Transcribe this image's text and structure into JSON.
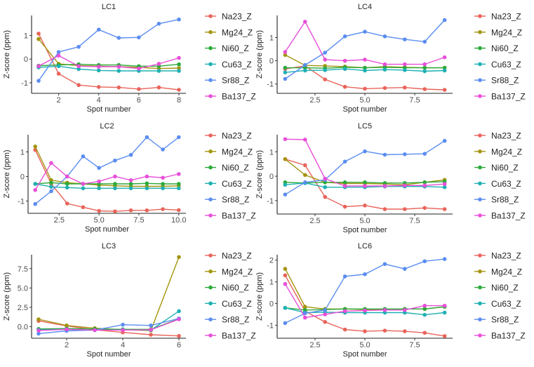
{
  "series_colors": {
    "Na23_Z": "#E8645A",
    "Mg24_Z": "#A3950E",
    "Ni60_Z": "#2BAA3A",
    "Cu63_Z": "#1EB0B3",
    "Sr88_Z": "#5B8DF0",
    "Ba137_Z": "#E84FD8"
  },
  "chart_data": [
    {
      "type": "line",
      "title": "LC1",
      "xlabel": "Spot number",
      "ylabel": "Z-score (ppm)",
      "xlim": [
        0.65,
        8.35
      ],
      "ylim": [
        -1.45,
        1.85
      ],
      "xticks": [
        2,
        4,
        6,
        8
      ],
      "xtick_labels": [
        "2",
        "4",
        "6",
        "8"
      ],
      "yticks": [
        -1,
        0,
        1
      ],
      "ytick_labels": [
        "-1",
        "0",
        "1"
      ],
      "x": [
        1,
        2,
        3,
        4,
        5,
        6,
        7,
        8
      ],
      "series": [
        {
          "name": "Na23_Z",
          "values": [
            1.08,
            -0.62,
            -1.1,
            -1.18,
            -1.2,
            -1.27,
            -1.2,
            -1.3
          ]
        },
        {
          "name": "Mg24_Z",
          "values": [
            0.85,
            -0.2,
            -0.28,
            -0.3,
            -0.32,
            -0.35,
            -0.4,
            -0.38
          ]
        },
        {
          "name": "Ni60_Z",
          "values": [
            -0.28,
            -0.25,
            -0.22,
            -0.25,
            -0.25,
            -0.3,
            -0.3,
            -0.22
          ]
        },
        {
          "name": "Cu63_Z",
          "values": [
            -0.35,
            -0.3,
            -0.42,
            -0.48,
            -0.5,
            -0.5,
            -0.5,
            -0.5
          ]
        },
        {
          "name": "Sr88_Z",
          "values": [
            -0.92,
            0.3,
            0.52,
            1.25,
            0.9,
            0.92,
            1.5,
            1.68
          ]
        },
        {
          "name": "Ba137_Z",
          "values": [
            -0.3,
            0.15,
            -0.3,
            -0.32,
            -0.32,
            -0.4,
            -0.2,
            0.05
          ]
        }
      ]
    },
    {
      "type": "line",
      "title": "LC4",
      "xlabel": "Spot number",
      "ylabel": "Z-score (ppm)",
      "xlim": [
        0.6,
        9.4
      ],
      "ylim": [
        -1.4,
        1.95
      ],
      "xticks": [
        2.5,
        5,
        7.5
      ],
      "xtick_labels": [
        "2.5",
        "5.0",
        "7.5"
      ],
      "yticks": [
        -1,
        0,
        1
      ],
      "ytick_labels": [
        "-1",
        "0",
        "1"
      ],
      "x": [
        1,
        2,
        3,
        4,
        5,
        6,
        7,
        8,
        9
      ],
      "series": [
        {
          "name": "Na23_Z",
          "values": [
            -0.35,
            -0.22,
            -0.8,
            -1.12,
            -1.2,
            -1.17,
            -1.15,
            -1.22,
            -1.25
          ]
        },
        {
          "name": "Mg24_Z",
          "values": [
            0.25,
            -0.2,
            -0.22,
            -0.25,
            -0.3,
            -0.25,
            -0.28,
            -0.3,
            -0.3
          ]
        },
        {
          "name": "Ni60_Z",
          "values": [
            -0.3,
            -0.3,
            -0.32,
            -0.28,
            -0.3,
            -0.28,
            -0.3,
            -0.3,
            -0.3
          ]
        },
        {
          "name": "Cu63_Z",
          "values": [
            -0.5,
            -0.42,
            -0.4,
            -0.35,
            -0.42,
            -0.38,
            -0.4,
            -0.45,
            -0.42
          ]
        },
        {
          "name": "Sr88_Z",
          "values": [
            -0.78,
            -0.18,
            0.35,
            1.05,
            1.25,
            1.05,
            0.92,
            0.82,
            1.75
          ]
        },
        {
          "name": "Ba137_Z",
          "values": [
            0.38,
            1.68,
            0.05,
            0.0,
            0.05,
            -0.15,
            -0.15,
            -0.15,
            0.15
          ]
        }
      ]
    },
    {
      "type": "line",
      "title": "LC2",
      "xlabel": "Spot number",
      "ylabel": "Z-score (ppm)",
      "xlim": [
        0.55,
        10.45
      ],
      "ylim": [
        -1.5,
        1.7
      ],
      "xticks": [
        2.5,
        5,
        7.5,
        10
      ],
      "xtick_labels": [
        "2.5",
        "5.0",
        "7.5",
        "10.0"
      ],
      "yticks": [
        -1,
        0,
        1
      ],
      "ytick_labels": [
        "-1",
        "0",
        "1"
      ],
      "x": [
        1,
        2,
        3,
        4,
        5,
        6,
        7,
        8,
        9,
        10
      ],
      "series": [
        {
          "name": "Na23_Z",
          "values": [
            1.08,
            -0.3,
            -1.1,
            -1.25,
            -1.4,
            -1.42,
            -1.38,
            -1.38,
            -1.33,
            -1.37
          ]
        },
        {
          "name": "Mg24_Z",
          "values": [
            1.22,
            -0.15,
            -0.25,
            -0.3,
            -0.35,
            -0.38,
            -0.4,
            -0.4,
            -0.4,
            -0.38
          ]
        },
        {
          "name": "Ni60_Z",
          "values": [
            -0.3,
            -0.25,
            -0.3,
            -0.3,
            -0.3,
            -0.3,
            -0.3,
            -0.28,
            -0.3,
            -0.3
          ]
        },
        {
          "name": "Cu63_Z",
          "values": [
            -0.3,
            -0.42,
            -0.45,
            -0.48,
            -0.48,
            -0.48,
            -0.48,
            -0.48,
            -0.48,
            -0.48
          ]
        },
        {
          "name": "Sr88_Z",
          "values": [
            -1.12,
            -0.6,
            0.0,
            0.82,
            0.35,
            0.65,
            0.88,
            1.6,
            1.1,
            1.6
          ]
        },
        {
          "name": "Ba137_Z",
          "values": [
            -0.55,
            0.55,
            0.0,
            -0.3,
            -0.2,
            0.0,
            -0.15,
            0.0,
            -0.05,
            0.1
          ]
        }
      ]
    },
    {
      "type": "line",
      "title": "LC5",
      "xlabel": "Spot number",
      "ylabel": "Z-score (ppm)",
      "xlim": [
        0.6,
        9.4
      ],
      "ylim": [
        -1.55,
        1.7
      ],
      "xticks": [
        2.5,
        5,
        7.5
      ],
      "xtick_labels": [
        "2.5",
        "5.0",
        "7.5"
      ],
      "yticks": [
        -1,
        0,
        1
      ],
      "ytick_labels": [
        "-1",
        "0",
        "1"
      ],
      "x": [
        1,
        2,
        3,
        4,
        5,
        6,
        7,
        8,
        9
      ],
      "series": [
        {
          "name": "Na23_Z",
          "values": [
            0.7,
            0.45,
            -0.85,
            -1.25,
            -1.2,
            -1.35,
            -1.35,
            -1.3,
            -1.35
          ]
        },
        {
          "name": "Mg24_Z",
          "values": [
            0.7,
            0.05,
            -0.25,
            -0.3,
            -0.3,
            -0.32,
            -0.35,
            -0.25,
            -0.15
          ]
        },
        {
          "name": "Ni60_Z",
          "values": [
            -0.25,
            -0.28,
            -0.25,
            -0.25,
            -0.25,
            -0.28,
            -0.28,
            -0.25,
            -0.22
          ]
        },
        {
          "name": "Cu63_Z",
          "values": [
            -0.35,
            -0.28,
            -0.45,
            -0.45,
            -0.45,
            -0.42,
            -0.42,
            -0.42,
            -0.45
          ]
        },
        {
          "name": "Sr88_Z",
          "values": [
            -0.75,
            -0.25,
            -0.15,
            0.6,
            1.02,
            0.88,
            0.9,
            0.92,
            1.45
          ]
        },
        {
          "name": "Ba137_Z",
          "values": [
            1.52,
            1.5,
            -0.1,
            -0.4,
            -0.4,
            -0.4,
            -0.38,
            -0.38,
            -0.32
          ]
        }
      ]
    },
    {
      "type": "line",
      "title": "LC3",
      "xlabel": "Spot number",
      "ylabel": "Z-score (ppm)",
      "xlim": [
        0.75,
        6.25
      ],
      "ylim": [
        -1.5,
        9.3
      ],
      "xticks": [
        2,
        4,
        6
      ],
      "xtick_labels": [
        "2",
        "4",
        "6"
      ],
      "yticks": [
        0,
        2.5,
        5,
        7.5
      ],
      "ytick_labels": [
        "0.0",
        "2.5",
        "5.0",
        "7.5"
      ],
      "x": [
        1,
        2,
        3,
        4,
        5,
        6
      ],
      "series": [
        {
          "name": "Na23_Z",
          "values": [
            0.75,
            0.1,
            -0.4,
            -0.75,
            -1.05,
            -1.2
          ]
        },
        {
          "name": "Mg24_Z",
          "values": [
            0.95,
            0.15,
            -0.2,
            -0.4,
            -0.5,
            9.0
          ]
        },
        {
          "name": "Ni60_Z",
          "values": [
            -0.3,
            -0.25,
            -0.3,
            -0.35,
            -0.35,
            1.0
          ]
        },
        {
          "name": "Cu63_Z",
          "values": [
            -0.4,
            -0.35,
            -0.45,
            -0.42,
            -0.45,
            2.0
          ]
        },
        {
          "name": "Sr88_Z",
          "values": [
            -0.9,
            -0.55,
            -0.45,
            0.25,
            0.15,
            1.05
          ]
        },
        {
          "name": "Ba137_Z",
          "values": [
            -0.5,
            -0.35,
            -0.45,
            -0.45,
            -0.4,
            0.95
          ]
        }
      ]
    },
    {
      "type": "line",
      "title": "LC6",
      "xlabel": "Spot number",
      "ylabel": "Z-score (ppm)",
      "xlim": [
        0.6,
        9.4
      ],
      "ylim": [
        -1.6,
        2.25
      ],
      "xticks": [
        2.5,
        5,
        7.5
      ],
      "xtick_labels": [
        "2.5",
        "5.0",
        "7.5"
      ],
      "yticks": [
        -1,
        0,
        1,
        2
      ],
      "ytick_labels": [
        "-1",
        "0",
        "1",
        "2"
      ],
      "x": [
        1,
        2,
        3,
        4,
        5,
        6,
        7,
        8,
        9
      ],
      "series": [
        {
          "name": "Na23_Z",
          "values": [
            1.3,
            -0.35,
            -0.85,
            -1.2,
            -1.28,
            -1.25,
            -1.28,
            -1.35,
            -1.5
          ]
        },
        {
          "name": "Mg24_Z",
          "values": [
            1.6,
            -0.15,
            -0.25,
            -0.25,
            -0.28,
            -0.28,
            -0.25,
            -0.25,
            -0.15
          ]
        },
        {
          "name": "Ni60_Z",
          "values": [
            -0.2,
            -0.3,
            -0.28,
            -0.25,
            -0.25,
            -0.25,
            -0.25,
            -0.25,
            -0.15
          ]
        },
        {
          "name": "Cu63_Z",
          "values": [
            -0.2,
            -0.42,
            -0.4,
            -0.42,
            -0.42,
            -0.42,
            -0.42,
            -0.52,
            -0.42
          ]
        },
        {
          "name": "Sr88_Z",
          "values": [
            -0.9,
            -0.45,
            -0.3,
            1.25,
            1.35,
            1.82,
            1.6,
            1.95,
            2.05
          ]
        },
        {
          "name": "Ba137_Z",
          "values": [
            0.9,
            -0.65,
            -0.5,
            -0.35,
            -0.32,
            -0.3,
            -0.3,
            -0.1,
            -0.1
          ]
        }
      ]
    }
  ]
}
